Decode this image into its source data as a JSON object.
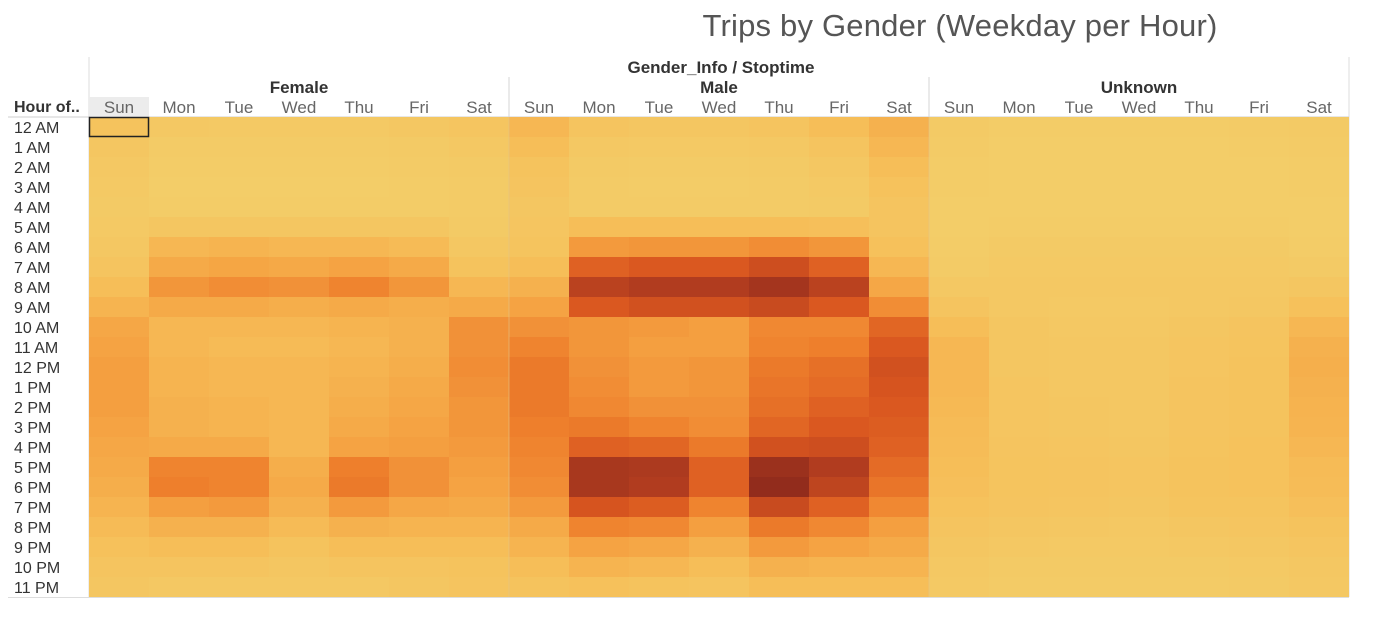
{
  "title": "Trips by Gender (Weekday per Hour)",
  "row_header": "Hour of..",
  "column_header": "Gender_Info / Stoptime",
  "chart_data": {
    "type": "heatmap",
    "title": "Trips by Gender (Weekday per Hour)",
    "column_header": "Gender_Info / Stoptime",
    "row_header": "Hour of..",
    "groups": [
      "Female",
      "Male",
      "Unknown"
    ],
    "days": [
      "Sun",
      "Mon",
      "Tue",
      "Wed",
      "Thu",
      "Fri",
      "Sat"
    ],
    "hours": [
      "12 AM",
      "1 AM",
      "2 AM",
      "3 AM",
      "4 AM",
      "5 AM",
      "6 AM",
      "7 AM",
      "8 AM",
      "9 AM",
      "10 AM",
      "11 AM",
      "12 PM",
      "1 PM",
      "2 PM",
      "3 PM",
      "4 PM",
      "5 PM",
      "6 PM",
      "7 PM",
      "8 PM",
      "9 PM",
      "10 PM",
      "11 PM"
    ],
    "value_scale": "relative intensity 0-100 (estimated from color)",
    "color_scale": [
      "#f2d06b",
      "#f6c05a",
      "#f5a544",
      "#ee7f2c",
      "#d9561f",
      "#b23d1f",
      "#8e2a1c"
    ],
    "selected_cell": {
      "group": "Female",
      "day": "Sun",
      "hour": "12 AM"
    },
    "values": {
      "Female": [
        [
          14,
          8,
          7,
          7,
          7,
          9,
          11
        ],
        [
          10,
          5,
          5,
          5,
          5,
          6,
          8
        ],
        [
          8,
          4,
          4,
          4,
          4,
          5,
          6
        ],
        [
          7,
          3,
          3,
          3,
          3,
          4,
          5
        ],
        [
          6,
          4,
          4,
          4,
          4,
          4,
          5
        ],
        [
          7,
          10,
          10,
          10,
          10,
          10,
          6
        ],
        [
          9,
          22,
          24,
          22,
          22,
          20,
          9
        ],
        [
          12,
          30,
          33,
          31,
          34,
          30,
          14
        ],
        [
          18,
          40,
          44,
          42,
          48,
          40,
          22
        ],
        [
          24,
          30,
          30,
          28,
          30,
          28,
          30
        ],
        [
          32,
          22,
          22,
          22,
          24,
          26,
          42
        ],
        [
          34,
          22,
          20,
          20,
          22,
          26,
          42
        ],
        [
          36,
          24,
          22,
          22,
          24,
          28,
          44
        ],
        [
          36,
          24,
          22,
          22,
          26,
          30,
          42
        ],
        [
          36,
          26,
          24,
          22,
          28,
          32,
          40
        ],
        [
          34,
          26,
          24,
          22,
          30,
          34,
          40
        ],
        [
          32,
          30,
          30,
          22,
          34,
          36,
          38
        ],
        [
          30,
          48,
          48,
          28,
          50,
          42,
          36
        ],
        [
          28,
          50,
          48,
          30,
          52,
          42,
          34
        ],
        [
          24,
          36,
          38,
          26,
          38,
          32,
          30
        ],
        [
          20,
          26,
          26,
          20,
          26,
          24,
          24
        ],
        [
          16,
          18,
          18,
          14,
          18,
          18,
          18
        ],
        [
          12,
          12,
          12,
          10,
          12,
          12,
          14
        ],
        [
          10,
          8,
          8,
          8,
          8,
          10,
          12
        ]
      ],
      "Male": [
        [
          22,
          12,
          10,
          10,
          12,
          18,
          26
        ],
        [
          18,
          8,
          7,
          7,
          8,
          12,
          22
        ],
        [
          14,
          6,
          5,
          5,
          6,
          9,
          18
        ],
        [
          12,
          5,
          4,
          4,
          5,
          7,
          15
        ],
        [
          10,
          5,
          5,
          5,
          5,
          6,
          12
        ],
        [
          11,
          18,
          18,
          18,
          18,
          17,
          12
        ],
        [
          13,
          38,
          40,
          40,
          44,
          40,
          16
        ],
        [
          18,
          62,
          66,
          66,
          72,
          62,
          22
        ],
        [
          26,
          80,
          84,
          84,
          90,
          80,
          32
        ],
        [
          34,
          66,
          70,
          70,
          74,
          66,
          44
        ],
        [
          42,
          40,
          38,
          36,
          46,
          46,
          60
        ],
        [
          48,
          40,
          36,
          36,
          48,
          50,
          66
        ],
        [
          52,
          42,
          38,
          40,
          52,
          56,
          70
        ],
        [
          52,
          44,
          38,
          40,
          54,
          58,
          68
        ],
        [
          52,
          46,
          42,
          42,
          56,
          62,
          66
        ],
        [
          50,
          52,
          48,
          44,
          60,
          66,
          64
        ],
        [
          48,
          62,
          60,
          52,
          70,
          72,
          62
        ],
        [
          46,
          88,
          86,
          62,
          94,
          84,
          58
        ],
        [
          44,
          88,
          84,
          62,
          98,
          78,
          54
        ],
        [
          38,
          68,
          64,
          48,
          74,
          62,
          46
        ],
        [
          30,
          48,
          46,
          36,
          52,
          46,
          36
        ],
        [
          24,
          34,
          32,
          26,
          38,
          34,
          30
        ],
        [
          18,
          24,
          22,
          18,
          26,
          24,
          24
        ],
        [
          14,
          16,
          14,
          12,
          18,
          18,
          18
        ]
      ],
      "Unknown": [
        [
          6,
          4,
          4,
          4,
          4,
          5,
          6
        ],
        [
          5,
          3,
          3,
          3,
          3,
          4,
          5
        ],
        [
          4,
          3,
          3,
          3,
          3,
          3,
          4
        ],
        [
          4,
          3,
          3,
          3,
          3,
          3,
          4
        ],
        [
          3,
          3,
          3,
          3,
          3,
          3,
          3
        ],
        [
          3,
          4,
          4,
          4,
          4,
          4,
          3
        ],
        [
          4,
          6,
          6,
          6,
          6,
          6,
          4
        ],
        [
          5,
          7,
          7,
          7,
          7,
          7,
          6
        ],
        [
          8,
          8,
          8,
          8,
          8,
          8,
          10
        ],
        [
          12,
          8,
          7,
          7,
          8,
          9,
          16
        ],
        [
          18,
          10,
          8,
          8,
          10,
          12,
          22
        ],
        [
          22,
          10,
          9,
          9,
          11,
          13,
          26
        ],
        [
          22,
          10,
          9,
          9,
          11,
          14,
          27
        ],
        [
          22,
          11,
          9,
          9,
          12,
          14,
          26
        ],
        [
          21,
          11,
          10,
          9,
          12,
          14,
          25
        ],
        [
          20,
          11,
          10,
          9,
          12,
          14,
          24
        ],
        [
          19,
          12,
          11,
          10,
          13,
          15,
          22
        ],
        [
          18,
          13,
          12,
          11,
          14,
          15,
          20
        ],
        [
          17,
          13,
          12,
          11,
          14,
          15,
          19
        ],
        [
          15,
          12,
          11,
          10,
          13,
          13,
          17
        ],
        [
          12,
          10,
          9,
          8,
          10,
          11,
          14
        ],
        [
          10,
          8,
          7,
          7,
          8,
          9,
          11
        ],
        [
          8,
          6,
          6,
          6,
          6,
          7,
          9
        ],
        [
          7,
          5,
          5,
          5,
          5,
          6,
          8
        ]
      ]
    }
  }
}
